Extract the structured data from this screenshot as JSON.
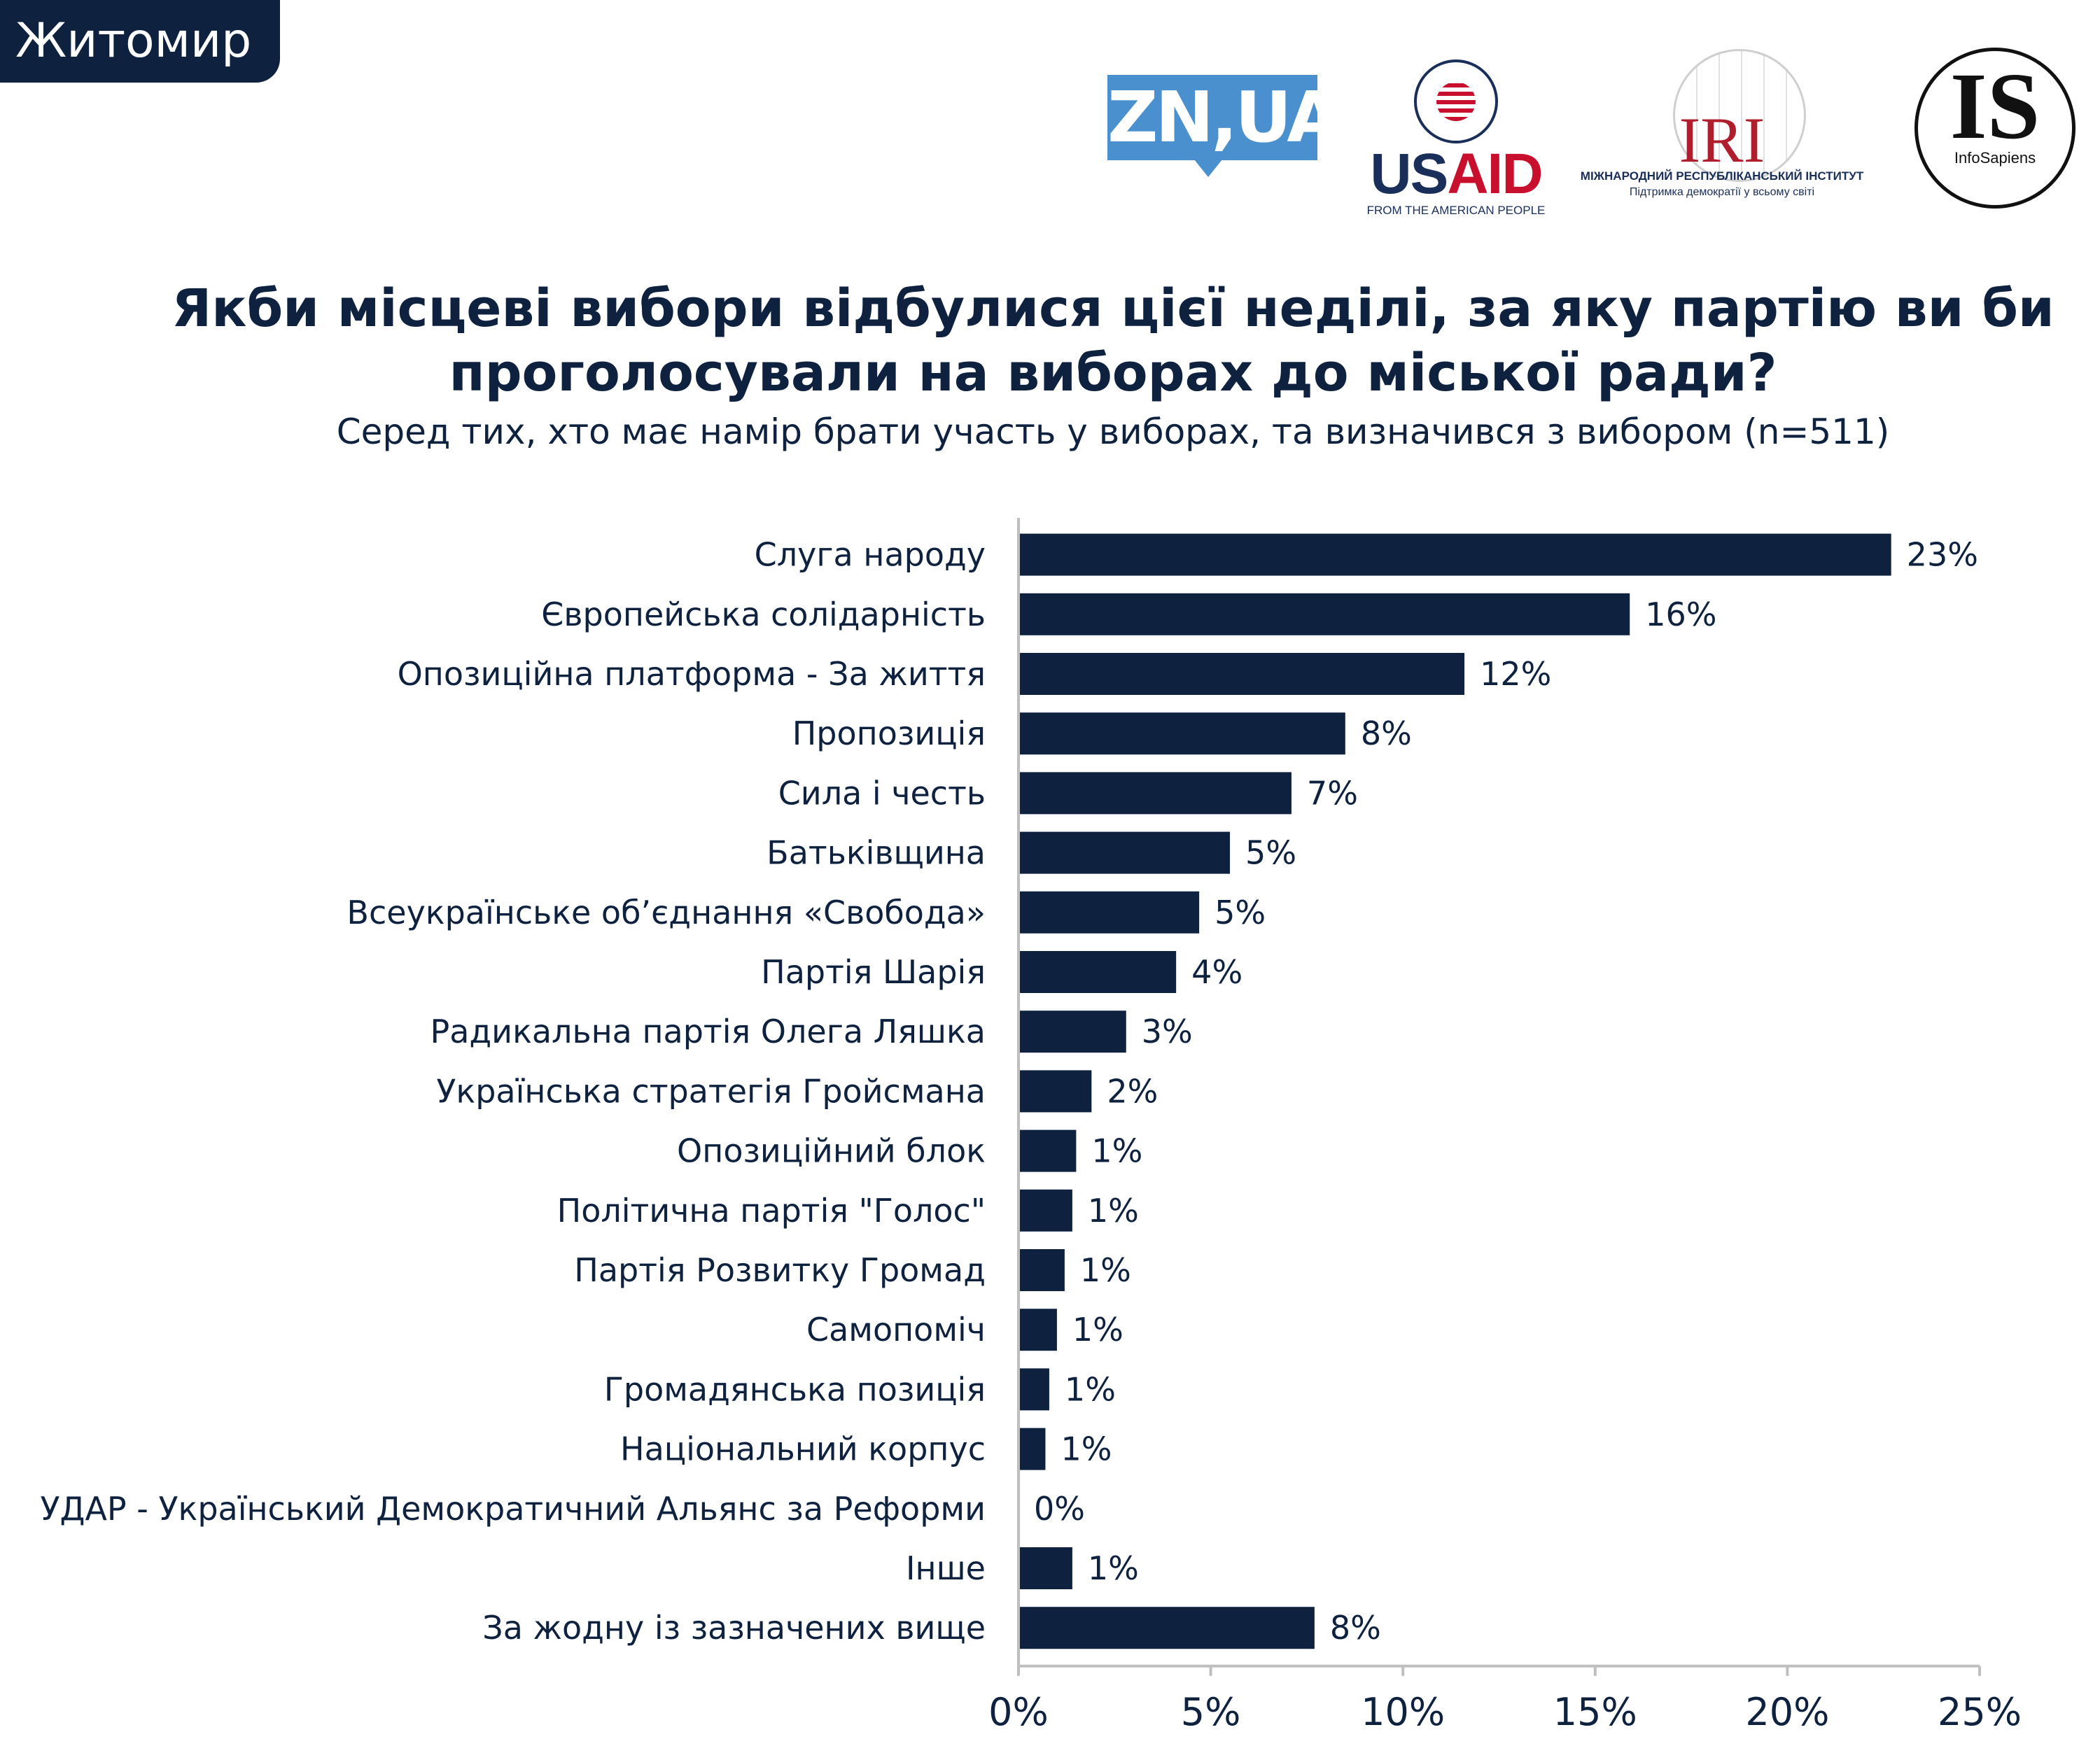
{
  "city_tab": "Житомир",
  "logos": {
    "zn": "ZN,UA",
    "usaid": {
      "us": "US",
      "aid": "AID",
      "tagline": "FROM THE AMERICAN PEOPLE"
    },
    "iri": {
      "word": "IRI",
      "line1": "МІЖНАРОДНИЙ РЕСПУБЛІКАНСЬКИЙ ІНСТИТУТ",
      "line2": "Підтримка демократії у всьому світі"
    },
    "infosapiens": {
      "letters": "IS",
      "name": "InfoSapiens"
    }
  },
  "colors": {
    "bar": "#0e2240",
    "text": "#0e2240",
    "axis": "#bfbfbf"
  },
  "chart_data": {
    "type": "bar",
    "orientation": "horizontal",
    "title": "Якби місцеві вибори відбулися цієї неділі, за яку партію ви би проголосували на виборах до міської ради?",
    "subtitle": "Серед тих, хто має намір брати участь у виборах, та визначився з вибором (n=511)",
    "categories": [
      "Слуга народу",
      "Європейська солідарність",
      "Опозиційна платформа - За життя",
      "Пропозиція",
      "Сила і честь",
      "Батьківщина",
      "Всеукраїнське об’єднання «Свобода»",
      "Партія Шарія",
      "Радикальна партія Олега Ляшка",
      "Українська стратегія Гройсмана",
      "Опозиційний блок",
      "Політична партія \"Голос\"",
      "Партія Розвитку Громад",
      "Самопоміч",
      "Громадянська позиція",
      "Національний корпус",
      "УДАР - Український Демократичний Альянс за Реформи",
      "Інше",
      "За жодну із зазначених вище"
    ],
    "values": [
      22.7,
      15.9,
      11.6,
      8.5,
      7.1,
      5.5,
      4.7,
      4.1,
      2.8,
      1.9,
      1.5,
      1.4,
      1.2,
      1.0,
      0.8,
      0.7,
      0.0,
      1.4,
      7.7
    ],
    "value_labels": [
      "23%",
      "16%",
      "12%",
      "8%",
      "7%",
      "5%",
      "5%",
      "4%",
      "3%",
      "2%",
      "1%",
      "1%",
      "1%",
      "1%",
      "1%",
      "1%",
      "0%",
      "1%",
      "8%"
    ],
    "xlim": [
      0,
      25
    ],
    "xticks": [
      0,
      5,
      10,
      15,
      20,
      25
    ],
    "xtick_labels": [
      "0%",
      "5%",
      "10%",
      "15%",
      "20%",
      "25%"
    ],
    "grid": false,
    "legend": "none"
  }
}
